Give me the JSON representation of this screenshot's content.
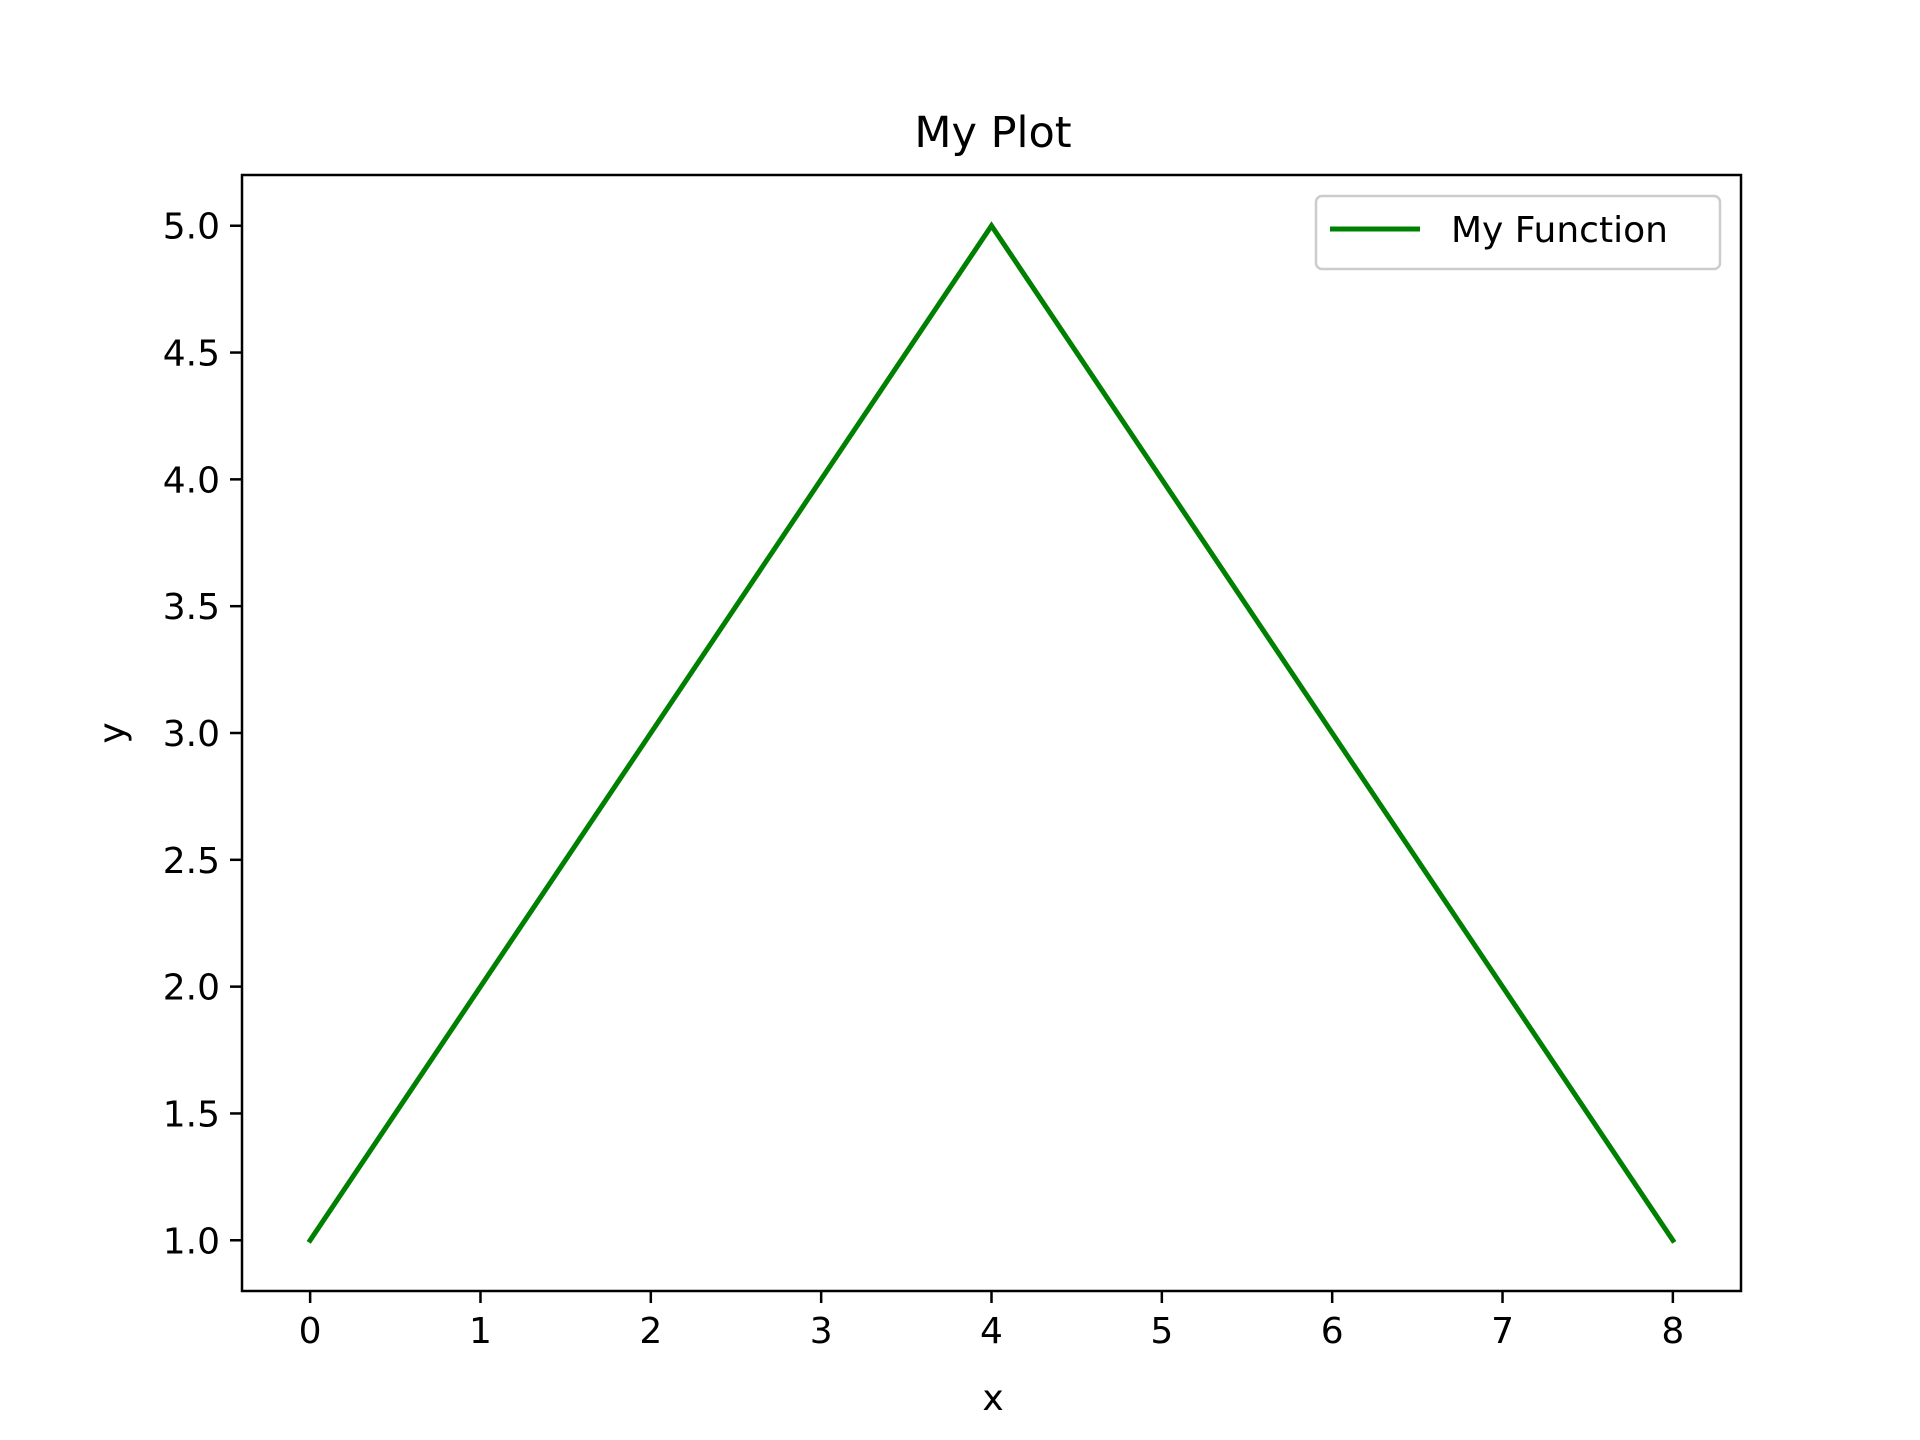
{
  "chart_data": {
    "type": "line",
    "title": "My Plot",
    "xlabel": "x",
    "ylabel": "y",
    "x": [
      0,
      1,
      2,
      3,
      4,
      5,
      6,
      7,
      8
    ],
    "series": [
      {
        "name": "My Function",
        "color": "#008000",
        "values": [
          1,
          2,
          3,
          4,
          5,
          4,
          3,
          2,
          1
        ]
      }
    ],
    "xlim": [
      -0.4,
      8.4
    ],
    "ylim": [
      0.8,
      5.2
    ],
    "xticks": [
      "0",
      "1",
      "2",
      "3",
      "4",
      "5",
      "6",
      "7",
      "8"
    ],
    "yticks": [
      "1.0",
      "1.5",
      "2.0",
      "2.5",
      "3.0",
      "3.5",
      "4.0",
      "4.5",
      "5.0"
    ],
    "grid": false,
    "legend_position": "upper right"
  }
}
